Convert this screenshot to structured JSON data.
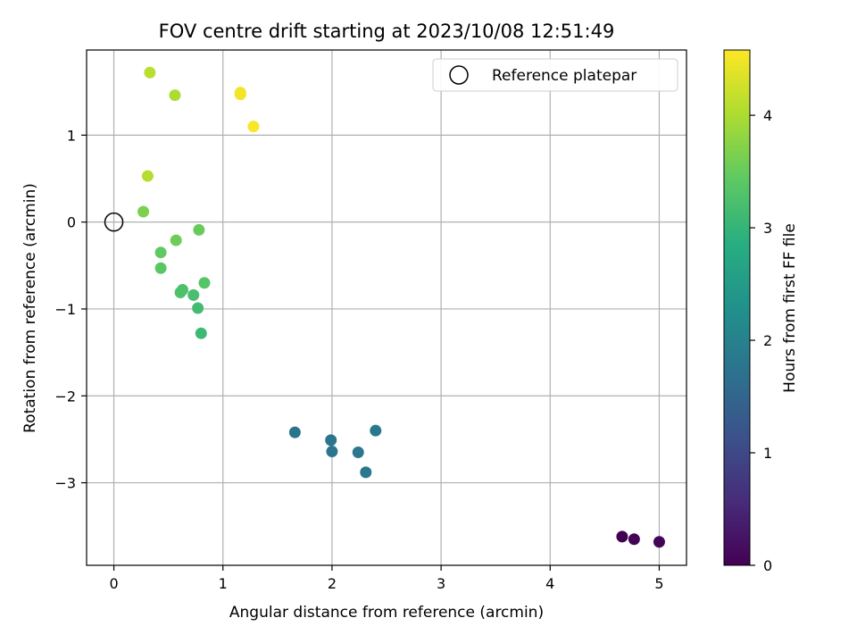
{
  "chart_data": {
    "type": "scatter",
    "title": "FOV centre drift starting at 2023/10/08 12:51:49",
    "xlabel": "Angular distance from reference (arcmin)",
    "ylabel": "Rotation from reference (arcmin)",
    "xlim": [
      -0.25,
      5.25
    ],
    "ylim": [
      -3.95,
      1.98
    ],
    "xticks": [
      0,
      1,
      2,
      3,
      4,
      5
    ],
    "yticks": [
      -3,
      -2,
      -1,
      0,
      1
    ],
    "grid": true,
    "legend": {
      "placement": "top-right",
      "entries": [
        "Reference platepar"
      ]
    },
    "reference_point": {
      "x": 0,
      "y": 0,
      "name": "Reference platepar"
    },
    "colorbar": {
      "label": "Hours from first FF file",
      "range": [
        0,
        4.58
      ],
      "ticks": [
        0,
        1,
        2,
        3,
        4
      ],
      "colormap": "viridis"
    },
    "points": [
      {
        "x": 4.66,
        "y": -3.62,
        "c": 0.0
      },
      {
        "x": 4.77,
        "y": -3.65,
        "c": 0.02
      },
      {
        "x": 5.0,
        "y": -3.68,
        "c": 0.04
      },
      {
        "x": 1.66,
        "y": -2.42,
        "c": 1.75
      },
      {
        "x": 1.99,
        "y": -2.51,
        "c": 1.77
      },
      {
        "x": 2.0,
        "y": -2.64,
        "c": 1.79
      },
      {
        "x": 2.24,
        "y": -2.65,
        "c": 1.81
      },
      {
        "x": 2.31,
        "y": -2.88,
        "c": 1.83
      },
      {
        "x": 2.4,
        "y": -2.4,
        "c": 1.85
      },
      {
        "x": 0.8,
        "y": -1.28,
        "c": 3.1
      },
      {
        "x": 0.77,
        "y": -0.99,
        "c": 3.15
      },
      {
        "x": 0.73,
        "y": -0.84,
        "c": 3.2
      },
      {
        "x": 0.61,
        "y": -0.81,
        "c": 3.3
      },
      {
        "x": 0.63,
        "y": -0.78,
        "c": 3.25
      },
      {
        "x": 0.83,
        "y": -0.7,
        "c": 3.35
      },
      {
        "x": 0.43,
        "y": -0.53,
        "c": 3.4
      },
      {
        "x": 0.43,
        "y": -0.35,
        "c": 3.45
      },
      {
        "x": 0.57,
        "y": -0.21,
        "c": 3.55
      },
      {
        "x": 0.78,
        "y": -0.09,
        "c": 3.5
      },
      {
        "x": 0.27,
        "y": 0.12,
        "c": 3.65
      },
      {
        "x": 0.31,
        "y": 0.53,
        "c": 4.05
      },
      {
        "x": 0.33,
        "y": 1.72,
        "c": 4.1
      },
      {
        "x": 0.56,
        "y": 1.46,
        "c": 4.0
      },
      {
        "x": 1.16,
        "y": 1.49,
        "c": 4.5
      },
      {
        "x": 1.16,
        "y": 1.47,
        "c": 4.5
      },
      {
        "x": 1.28,
        "y": 1.1,
        "c": 4.55
      }
    ]
  }
}
